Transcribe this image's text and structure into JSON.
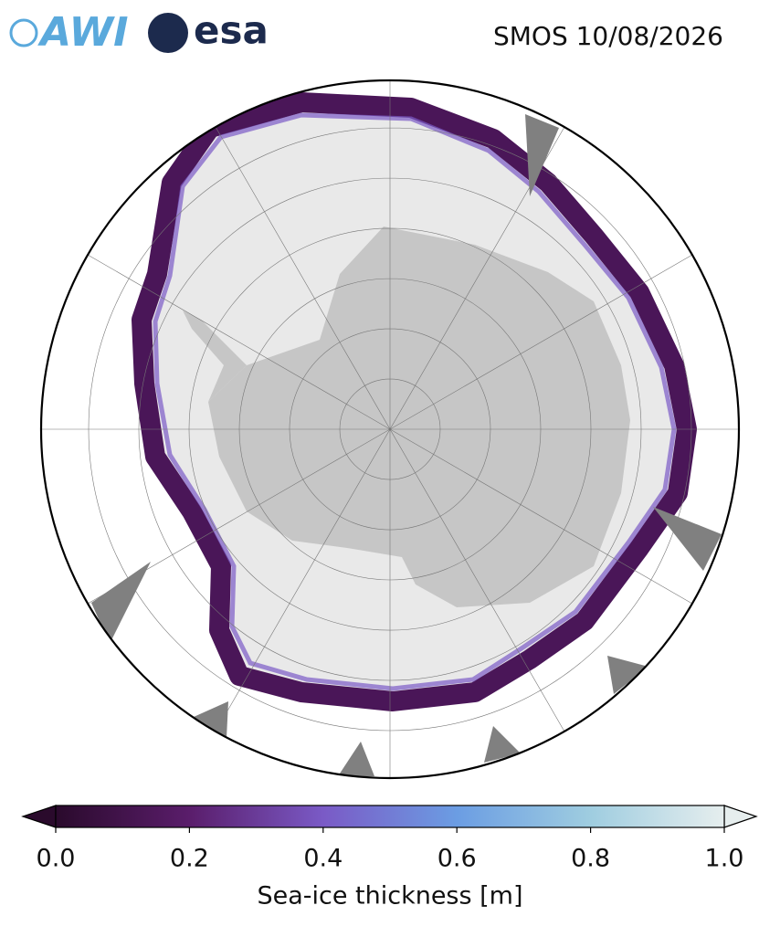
{
  "header": {
    "logos": [
      "AWI",
      "esa"
    ],
    "title": "SMOS 10/08/2026"
  },
  "colorbar": {
    "label": "Sea-ice thickness [m]",
    "range": [
      0,
      1
    ],
    "ticks": [
      {
        "value": 0,
        "label": "0.0"
      },
      0.2,
      0.4,
      0.6,
      0.8,
      {
        "value": 1,
        "label": "1.0"
      }
    ],
    "colors": [
      "#2a0a2c",
      "#5a1d6b",
      "#7a5ac6",
      "#6b9de3",
      "#9fcde0",
      "#e6eeee"
    ]
  }
}
